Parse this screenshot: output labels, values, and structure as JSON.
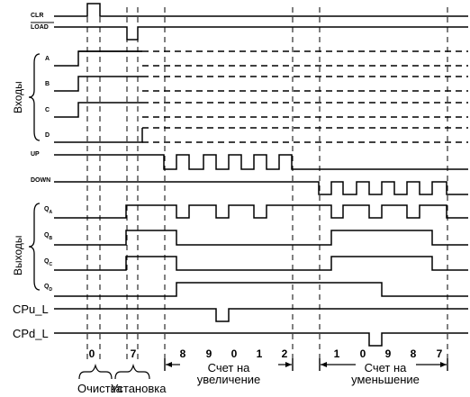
{
  "signals": {
    "clr": "CLR",
    "load": "LOAD",
    "a": "A",
    "b": "B",
    "c": "C",
    "d": "D",
    "up": "UP",
    "down": "DOWN",
    "qa": "Q",
    "qa_sub": "A",
    "qb": "Q",
    "qb_sub": "B",
    "qc": "Q",
    "qc_sub": "C",
    "qd": "Q",
    "qd_sub": "D",
    "cpu": "CPu_L",
    "cpd": "CPd_L"
  },
  "groups": {
    "inputs": "Входы",
    "outputs": "Выходы"
  },
  "counts": {
    "clear_value": "0",
    "load_value": "7",
    "up_sequence": [
      "8",
      "9",
      "0",
      "1",
      "2"
    ],
    "down_sequence": [
      "1",
      "0",
      "9",
      "8",
      "7"
    ]
  },
  "captions": {
    "clear": "Очистка",
    "load": "Установка",
    "count_up_line1": "Счет на",
    "count_up_line2": "увеличение",
    "count_down_line1": "Счет на",
    "count_down_line2": "уменьшение"
  },
  "colors": {
    "ink": "#000000",
    "background": "#ffffff"
  }
}
